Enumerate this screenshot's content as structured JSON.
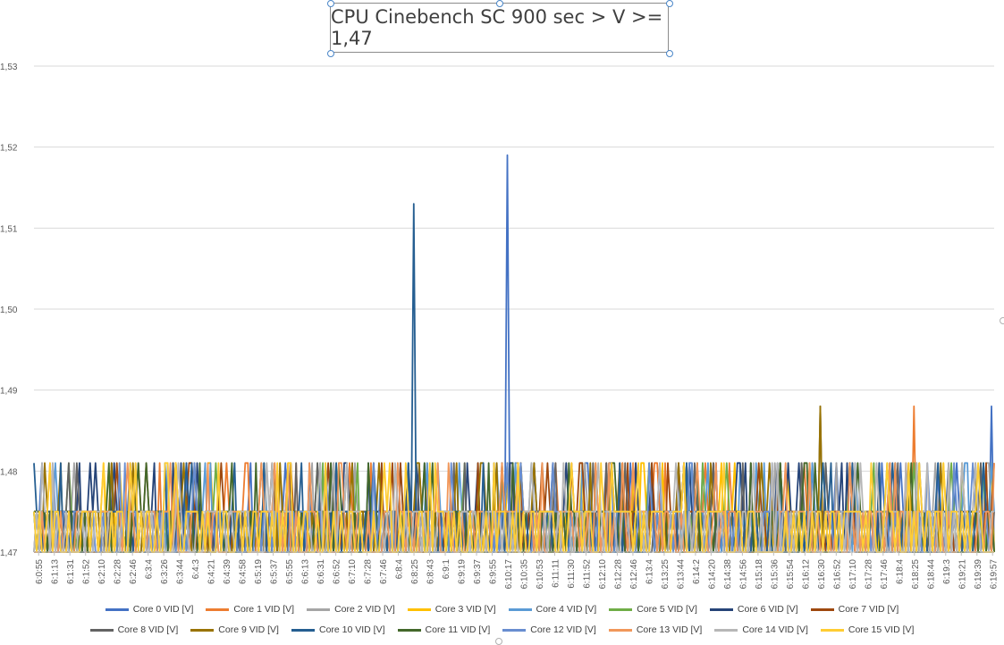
{
  "chart_data": {
    "type": "line",
    "title": "CPU Cinebench SC 900 sec > V >= 1,47",
    "xlabel": "",
    "ylabel": "",
    "ylim": [
      1.47,
      1.53
    ],
    "yticks": [
      "1,47",
      "1,48",
      "1,49",
      "1,50",
      "1,51",
      "1,52",
      "1,53"
    ],
    "grid": true,
    "legend_position": "bottom",
    "x_tick_labels": [
      "6:0:55",
      "6:1:13",
      "6:1:31",
      "6:1:52",
      "6:2:10",
      "6:2:28",
      "6:2:46",
      "6:3:4",
      "6:3:26",
      "6:3:44",
      "6:4:3",
      "6:4:21",
      "6:4:39",
      "6:4:58",
      "6:5:19",
      "6:5:37",
      "6:5:55",
      "6:6:13",
      "6:6:31",
      "6:6:52",
      "6:7:10",
      "6:7:28",
      "6:7:46",
      "6:8:4",
      "6:8:25",
      "6:8:43",
      "6:9:1",
      "6:9:19",
      "6:9:37",
      "6:9:55",
      "6:10:17",
      "6:10:35",
      "6:10:53",
      "6:11:11",
      "6:11:30",
      "6:11:52",
      "6:12:10",
      "6:12:28",
      "6:12:46",
      "6:13:4",
      "6:13:25",
      "6:13:44",
      "6:14:2",
      "6:14:20",
      "6:14:38",
      "6:14:56",
      "6:15:18",
      "6:15:36",
      "6:15:54",
      "6:16:12",
      "6:16:30",
      "6:16:52",
      "6:17:10",
      "6:17:28",
      "6:17:46",
      "6:18:4",
      "6:18:25",
      "6:18:44",
      "6:19:3",
      "6:19:21",
      "6:19:39",
      "6:19:57"
    ],
    "series": [
      {
        "name": "Core 0 VID [V]",
        "color": "#4472c4"
      },
      {
        "name": "Core 1 VID [V]",
        "color": "#ed7d31"
      },
      {
        "name": "Core 2 VID [V]",
        "color": "#a5a5a5"
      },
      {
        "name": "Core 3 VID [V]",
        "color": "#ffc000"
      },
      {
        "name": "Core 4 VID [V]",
        "color": "#5b9bd5"
      },
      {
        "name": "Core 5 VID [V]",
        "color": "#70ad47"
      },
      {
        "name": "Core 6 VID [V]",
        "color": "#264478"
      },
      {
        "name": "Core 7 VID [V]",
        "color": "#9e480e"
      },
      {
        "name": "Core 8 VID [V]",
        "color": "#636363"
      },
      {
        "name": "Core 9 VID [V]",
        "color": "#997300"
      },
      {
        "name": "Core 10 VID [V]",
        "color": "#255e91"
      },
      {
        "name": "Core 11 VID [V]",
        "color": "#43682b"
      },
      {
        "name": "Core 12 VID [V]",
        "color": "#698ed0"
      },
      {
        "name": "Core 13 VID [V]",
        "color": "#f1975a"
      },
      {
        "name": "Core 14 VID [V]",
        "color": "#b7b7b7"
      },
      {
        "name": "Core 15 VID [V]",
        "color": "#ffcd33"
      }
    ],
    "spikes": [
      {
        "series": 10,
        "x": "6:8:25",
        "y": 1.513
      },
      {
        "series": 0,
        "x": "6:10:17",
        "y": 1.519
      },
      {
        "series": 8,
        "x": "6:16:30",
        "y": 1.488
      },
      {
        "series": 9,
        "x": "6:16:30",
        "y": 1.488
      },
      {
        "series": 1,
        "x": "6:18:25",
        "y": 1.488
      },
      {
        "series": 0,
        "x": "6:19:57",
        "y": 1.488
      }
    ]
  }
}
